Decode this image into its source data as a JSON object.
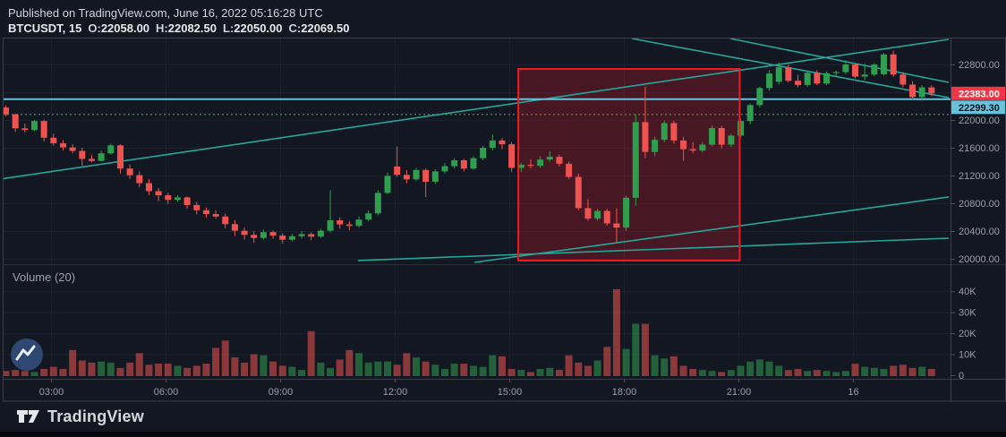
{
  "header": {
    "published_line": "Published on TradingView.com, June 16, 2022 05:16:28 UTC",
    "symbol_interval": "BTCUSDT, 15",
    "ohlc": [
      {
        "label": "O:",
        "value": "22058.00"
      },
      {
        "label": "H:",
        "value": "22082.50"
      },
      {
        "label": "L:",
        "value": "22050.00"
      },
      {
        "label": "C:",
        "value": "22069.50"
      }
    ]
  },
  "footer": {
    "brand": "TradingView"
  },
  "chart_data": {
    "type": "candlestick",
    "title": "BTCUSDT 15-minute chart with volume",
    "symbol": "BTCUSDT",
    "interval_minutes": 15,
    "volume_indicator_label": "Volume (20)",
    "price_axis_labels": [
      {
        "text": "22800.00",
        "price": 22800
      },
      {
        "text": "22000.00",
        "price": 22000
      },
      {
        "text": "21600.00",
        "price": 21600
      },
      {
        "text": "21200.00",
        "price": 21200
      },
      {
        "text": "20800.00",
        "price": 20800
      },
      {
        "text": "20400.00",
        "price": 20400
      },
      {
        "text": "20000.00",
        "price": 20000
      }
    ],
    "price_grid": [
      22800,
      22400,
      22000,
      21600,
      21200,
      20800,
      20400,
      20000
    ],
    "price_tags": [
      {
        "text": "22383.00",
        "price": 22383.0,
        "bg": "#f23645",
        "fg": "#ffffff"
      },
      {
        "text": "22299.30",
        "price": 22299.3,
        "bg": "#68c2dc",
        "fg": "#0c121c"
      }
    ],
    "volume_axis_labels": [
      {
        "text": "40K",
        "value": 40
      },
      {
        "text": "30K",
        "value": 30
      },
      {
        "text": "20K",
        "value": 20
      },
      {
        "text": "10K",
        "value": 10
      },
      {
        "text": "0",
        "value": 0
      }
    ],
    "time_axis_labels": [
      {
        "text": "03:00",
        "index": 4.75
      },
      {
        "text": "06:00",
        "index": 16.75
      },
      {
        "text": "09:00",
        "index": 28.75
      },
      {
        "text": "12:00",
        "index": 40.75
      },
      {
        "text": "15:00",
        "index": 52.75
      },
      {
        "text": "18:00",
        "index": 64.75
      },
      {
        "text": "21:00",
        "index": 76.75
      },
      {
        "text": "16",
        "index": 88.75
      }
    ],
    "horizontal_lines": [
      {
        "price": 22299.3,
        "color": "#68c2dc",
        "style": "solid",
        "width": 2
      },
      {
        "price": 22080,
        "color": "#4caf50",
        "style": "dotted",
        "width": 1
      }
    ],
    "trend_lines": [
      {
        "i1": -0.6,
        "p1": 21148,
        "i2": 98.8,
        "p2": 23161
      },
      {
        "i1": 49.1,
        "p1": 19949,
        "i2": 98.8,
        "p2": 20891
      },
      {
        "i1": 36.9,
        "p1": 19975,
        "i2": 98.8,
        "p2": 20297
      },
      {
        "i1": 65.6,
        "p1": 23174,
        "i2": 98.8,
        "p2": 22323
      },
      {
        "i1": 75.9,
        "p1": 23174,
        "i2": 98.8,
        "p2": 22542
      }
    ],
    "highlight_box": {
      "i1": 53.7,
      "i2": 76.9,
      "p1": 22735,
      "p2": 19975,
      "fill": "rgba(185,28,38,0.32)",
      "stroke": "#f01a24"
    },
    "scale": {
      "price_top": 23187,
      "price_bottom": 19923,
      "volume_top_k": 46.5
    },
    "colors": {
      "up": "#2f9e4f",
      "down": "#ef5350",
      "vol_up": "rgba(47,158,79,0.55)",
      "vol_down": "rgba(239,83,80,0.55)",
      "grid": "#1c2130",
      "frame": "#3a3f4c",
      "separator": "#2a2e39",
      "axis_text": "#9b9fa8",
      "trend": "#26a69a",
      "background": "#131722"
    },
    "candles": [
      [
        22180,
        22210,
        22050,
        22080
      ],
      [
        22080,
        22095,
        21830,
        21880
      ],
      [
        21880,
        21950,
        21820,
        21855
      ],
      [
        21855,
        22000,
        21840,
        21985
      ],
      [
        21985,
        22005,
        21690,
        21745
      ],
      [
        21745,
        21800,
        21630,
        21665
      ],
      [
        21665,
        21710,
        21560,
        21605
      ],
      [
        21605,
        21650,
        21520,
        21555
      ],
      [
        21555,
        21600,
        21340,
        21440
      ],
      [
        21440,
        21500,
        21390,
        21410
      ],
      [
        21410,
        21560,
        21400,
        21520
      ],
      [
        21520,
        21660,
        21500,
        21635
      ],
      [
        21635,
        21650,
        21230,
        21300
      ],
      [
        21300,
        21360,
        21150,
        21205
      ],
      [
        21205,
        21260,
        21030,
        21090
      ],
      [
        21090,
        21150,
        20920,
        20975
      ],
      [
        20975,
        21020,
        20830,
        20915
      ],
      [
        20915,
        20950,
        20790,
        20850
      ],
      [
        20850,
        20920,
        20820,
        20885
      ],
      [
        20885,
        20900,
        20720,
        20775
      ],
      [
        20775,
        20820,
        20640,
        20700
      ],
      [
        20700,
        20740,
        20590,
        20645
      ],
      [
        20645,
        20700,
        20580,
        20610
      ],
      [
        20610,
        20650,
        20440,
        20500
      ],
      [
        20500,
        20560,
        20330,
        20405
      ],
      [
        20405,
        20450,
        20280,
        20345
      ],
      [
        20345,
        20400,
        20230,
        20300
      ],
      [
        20300,
        20420,
        20280,
        20385
      ],
      [
        20385,
        20410,
        20290,
        20335
      ],
      [
        20335,
        20370,
        20220,
        20275
      ],
      [
        20275,
        20360,
        20250,
        20325
      ],
      [
        20325,
        20400,
        20290,
        20355
      ],
      [
        20355,
        20380,
        20270,
        20320
      ],
      [
        20320,
        20430,
        20300,
        20405
      ],
      [
        20405,
        20990,
        20380,
        20555
      ],
      [
        20555,
        20600,
        20430,
        20495
      ],
      [
        20495,
        20540,
        20410,
        20475
      ],
      [
        20475,
        20610,
        20450,
        20565
      ],
      [
        20565,
        20700,
        20540,
        20655
      ],
      [
        20655,
        20990,
        20630,
        20950
      ],
      [
        20950,
        21240,
        20930,
        21195
      ],
      [
        21330,
        21620,
        21180,
        21210
      ],
      [
        21210,
        21280,
        21090,
        21145
      ],
      [
        21145,
        21310,
        21120,
        21280
      ],
      [
        21280,
        21300,
        20890,
        21110
      ],
      [
        21110,
        21290,
        21080,
        21260
      ],
      [
        21260,
        21380,
        21230,
        21335
      ],
      [
        21335,
        21450,
        21300,
        21420
      ],
      [
        21420,
        21440,
        21260,
        21300
      ],
      [
        21300,
        21480,
        21280,
        21450
      ],
      [
        21450,
        21630,
        21420,
        21600
      ],
      [
        21600,
        21790,
        21560,
        21705
      ],
      [
        21705,
        21740,
        21580,
        21650
      ],
      [
        21650,
        21680,
        21250,
        21310
      ],
      [
        21310,
        21380,
        21250,
        21355
      ],
      [
        21355,
        21430,
        21300,
        21340
      ],
      [
        21340,
        21480,
        21310,
        21430
      ],
      [
        21430,
        21550,
        21400,
        21470
      ],
      [
        21470,
        21500,
        21330,
        21370
      ],
      [
        21370,
        21400,
        21150,
        21180
      ],
      [
        21180,
        21230,
        20700,
        20730
      ],
      [
        20730,
        20860,
        20550,
        20580
      ],
      [
        20580,
        20720,
        20550,
        20690
      ],
      [
        20690,
        20720,
        20480,
        20510
      ],
      [
        20510,
        20730,
        20240,
        20450
      ],
      [
        20450,
        20910,
        20400,
        20880
      ],
      [
        20880,
        22080,
        20760,
        21970
      ],
      [
        21970,
        22480,
        21450,
        21540
      ],
      [
        21540,
        21760,
        21480,
        21715
      ],
      [
        21715,
        21990,
        21680,
        21955
      ],
      [
        21955,
        21990,
        21660,
        21705
      ],
      [
        21705,
        21760,
        21410,
        21580
      ],
      [
        21580,
        21680,
        21520,
        21560
      ],
      [
        21560,
        21680,
        21530,
        21645
      ],
      [
        21645,
        21920,
        21620,
        21885
      ],
      [
        21885,
        21910,
        21590,
        21645
      ],
      [
        21645,
        21800,
        21610,
        21775
      ],
      [
        21775,
        22010,
        21750,
        21985
      ],
      [
        21985,
        22240,
        21940,
        22215
      ],
      [
        22215,
        22480,
        22180,
        22460
      ],
      [
        22460,
        22720,
        22420,
        22670
      ],
      [
        22550,
        22830,
        22510,
        22760
      ],
      [
        22760,
        22800,
        22540,
        22565
      ],
      [
        22565,
        22650,
        22470,
        22505
      ],
      [
        22505,
        22700,
        22480,
        22680
      ],
      [
        22680,
        22720,
        22500,
        22525
      ],
      [
        22525,
        22700,
        22500,
        22675
      ],
      [
        22675,
        22710,
        22620,
        22690
      ],
      [
        22690,
        22860,
        22660,
        22800
      ],
      [
        22800,
        22820,
        22600,
        22625
      ],
      [
        22625,
        22810,
        22580,
        22655
      ],
      [
        22655,
        22820,
        22630,
        22800
      ],
      [
        22660,
        22965,
        22640,
        22945
      ],
      [
        22945,
        23000,
        22620,
        22655
      ],
      [
        22655,
        22690,
        22470,
        22510
      ],
      [
        22510,
        22560,
        22290,
        22330
      ],
      [
        22330,
        22500,
        22280,
        22470
      ],
      [
        22470,
        22500,
        22340,
        22383
      ]
    ],
    "volume_unit": "K",
    "volumes": [
      2,
      2.5,
      2,
      1.5,
      3,
      4,
      3,
      12,
      7,
      6,
      6.5,
      6,
      3.5,
      6,
      10.5,
      5,
      5.5,
      5.5,
      4.5,
      3.5,
      4.5,
      5.5,
      13,
      16.5,
      8.5,
      6,
      10,
      9.5,
      6.5,
      4.5,
      4,
      2.5,
      21,
      6,
      3.5,
      7.5,
      12,
      10.5,
      6,
      6.5,
      6.5,
      5,
      10.5,
      8.5,
      6.5,
      5,
      3,
      5.5,
      5.5,
      4.5,
      4,
      9.5,
      9,
      3,
      2.5,
      1.5,
      3,
      3.5,
      2.5,
      9.5,
      6,
      4.5,
      7,
      13.5,
      41,
      12.5,
      24.5,
      24.5,
      9.5,
      8,
      9,
      4.5,
      3,
      2.5,
      2,
      1.5,
      2.5,
      4.5,
      6.5,
      7.5,
      6.5,
      4.5,
      2.5,
      3,
      2,
      2.5,
      2,
      1.5,
      2,
      5.5,
      4,
      3.5,
      3,
      4.5,
      5,
      3.5,
      4,
      3
    ]
  }
}
